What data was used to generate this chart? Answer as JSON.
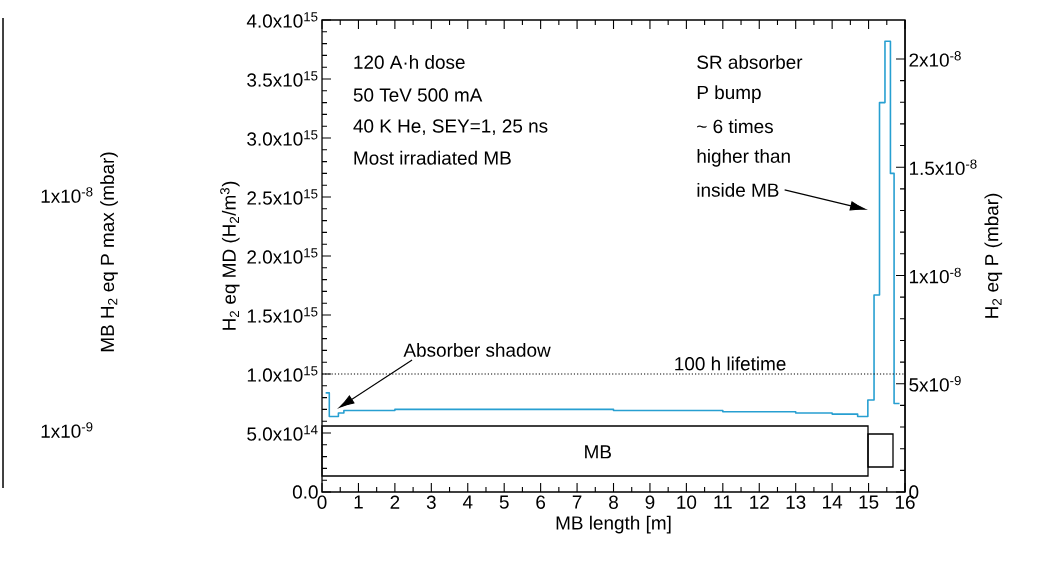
{
  "chart_data": [
    {
      "type": "other",
      "ylabel": "MB H$_{2}$ eq P max (mbar)",
      "annotations": [
        "1x10$^{-8}$",
        "1x10$^{-9}$"
      ]
    },
    {
      "type": "step",
      "xlabel": "MB length [m]",
      "ylabel": "H$_{2}$ eq MD (H$_{2}$/m$^{3}$)",
      "y2label": "H$_{2}$ eq P (mbar)",
      "xlim": [
        0,
        16
      ],
      "xticks": [
        0,
        1,
        2,
        3,
        4,
        5,
        6,
        7,
        8,
        9,
        10,
        11,
        12,
        13,
        14,
        15,
        16
      ],
      "ylim": [
        0,
        4000000000000000.0
      ],
      "yticks": [
        {
          "value": 0,
          "label": "0.0"
        },
        {
          "value": 500000000000000.0,
          "label": "5.0x10$^{14}$"
        },
        {
          "value": 1000000000000000.0,
          "label": "1.0x10$^{15}$"
        },
        {
          "value": 1500000000000000.0,
          "label": "1.5x10$^{15}$"
        },
        {
          "value": 2000000000000000.0,
          "label": "2.0x10$^{15}$"
        },
        {
          "value": 2500000000000000.0,
          "label": "2.5x10$^{15}$"
        },
        {
          "value": 3000000000000000.0,
          "label": "3.0x10$^{15}$"
        },
        {
          "value": 3500000000000000.0,
          "label": "3.5x10$^{15}$"
        },
        {
          "value": 4000000000000000.0,
          "label": "4.0x10$^{15}$"
        }
      ],
      "y2lim": [
        0,
        2.18e-08
      ],
      "y2ticks": [
        0,
        {
          "value": 5e-09,
          "label": "5x10$^{-9}$"
        },
        {
          "value": 1e-08,
          "label": "1x10$^{-8}$"
        },
        {
          "value": 1.5e-08,
          "label": "1.5x10$^{-8}$"
        },
        {
          "value": 2e-08,
          "label": "2x10$^{-8}$"
        }
      ],
      "series": [
        {
          "color": "#279fd1",
          "x": [
            0.1,
            0.2,
            0.45,
            0.6,
            1,
            2,
            3,
            4,
            5,
            6,
            7,
            8,
            9,
            10,
            11,
            12,
            13,
            14,
            14.7,
            14.98,
            15.15,
            15.3,
            15.45,
            15.6,
            15.7,
            15.85
          ],
          "values": [
            840000000000000.0,
            640000000000000.0,
            670000000000000.0,
            690000000000000.0,
            690000000000000.0,
            700000000000000.0,
            700000000000000.0,
            700000000000000.0,
            700000000000000.0,
            700000000000000.0,
            700000000000000.0,
            690000000000000.0,
            690000000000000.0,
            690000000000000.0,
            680000000000000.0,
            680000000000000.0,
            670000000000000.0,
            660000000000000.0,
            640000000000000.0,
            780000000000000.0,
            1670000000000000.0,
            3300000000000000.0,
            3820000000000000.0,
            2700000000000000.0,
            750000000000000.0,
            750000000000000.0
          ]
        }
      ],
      "ref_lines": [
        {
          "axis": "y",
          "value": 1000000000000000.0,
          "label": "100 h lifetime",
          "line_style": "dotted"
        }
      ],
      "annotations": [
        "120 A·h dose",
        "50 TeV 500 mA",
        "40 K He, SEY=1, 25 ns",
        "Most irradiated MB",
        "SR absorber",
        "P bump",
        "~ 6 times",
        "higher than",
        "inside MB",
        "Absorber shadow",
        "MB"
      ]
    }
  ]
}
